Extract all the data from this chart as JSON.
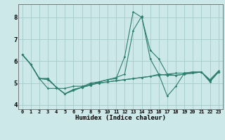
{
  "xlabel": "Humidex (Indice chaleur)",
  "x": [
    0,
    1,
    2,
    3,
    4,
    5,
    6,
    7,
    8,
    9,
    10,
    11,
    12,
    13,
    14,
    15,
    16,
    17,
    18,
    19,
    20,
    21,
    22,
    23
  ],
  "line1": [
    6.3,
    5.85,
    5.2,
    5.2,
    4.8,
    4.5,
    4.7,
    4.8,
    4.9,
    5.05,
    5.15,
    5.2,
    6.2,
    8.25,
    8.0,
    6.5,
    6.1,
    5.4,
    5.35,
    5.4,
    5.45,
    5.5,
    5.1,
    5.5
  ],
  "line2": [
    6.3,
    5.85,
    5.2,
    5.2,
    4.8,
    4.5,
    4.7,
    4.8,
    5.0,
    5.05,
    5.15,
    5.25,
    5.4,
    7.4,
    8.05,
    6.1,
    5.4,
    5.35,
    5.35,
    5.4,
    5.45,
    5.5,
    5.1,
    5.5
  ],
  "line3": [
    6.3,
    5.85,
    5.2,
    5.15,
    4.8,
    4.5,
    4.65,
    4.8,
    4.9,
    5.0,
    5.05,
    5.1,
    5.15,
    5.2,
    5.25,
    5.3,
    5.35,
    5.4,
    5.45,
    5.45,
    5.5,
    5.5,
    5.15,
    5.55
  ],
  "line4": [
    6.3,
    5.85,
    5.2,
    4.75,
    4.75,
    4.75,
    4.85,
    4.85,
    4.95,
    5.0,
    5.05,
    5.1,
    5.15,
    5.2,
    5.25,
    5.3,
    5.4,
    4.4,
    4.85,
    5.45,
    5.5,
    5.5,
    5.05,
    5.5
  ],
  "line_color": "#2d7d6e",
  "bg_color": "#cce8e8",
  "grid_color": "#aacece",
  "ylim": [
    3.8,
    8.6
  ],
  "xlim": [
    -0.5,
    23.5
  ]
}
